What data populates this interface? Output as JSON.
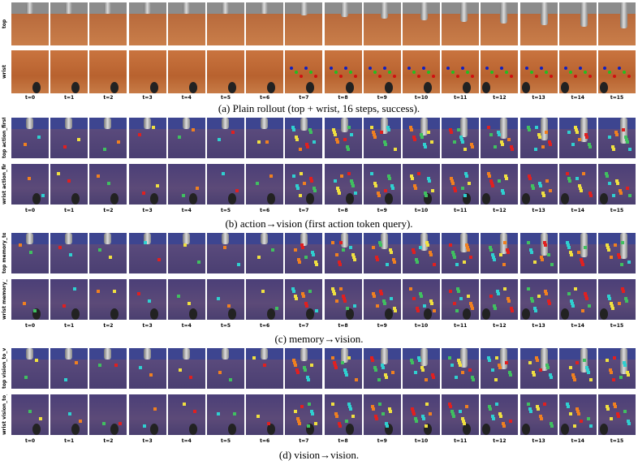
{
  "panels": [
    {
      "rows": [
        "top",
        "wrist"
      ],
      "time_labels": [
        "t=0",
        "t=1",
        "t=2",
        "t=3",
        "t=4",
        "t=5",
        "t=6",
        "t=7",
        "t=8",
        "t=9",
        "t=10",
        "t=11",
        "t=12",
        "t=13",
        "t=14",
        "t=15"
      ],
      "caption": "(a) Plain rollout (top + wrist, 16 steps, success)."
    },
    {
      "rows": [
        "top action_first_to_vision",
        "wrist action_first_to_vision"
      ],
      "time_labels": [
        "t=0",
        "t=1",
        "t=2",
        "t=3",
        "t=4",
        "t=5",
        "t=6",
        "t=7",
        "t=8",
        "t=9",
        "t=10",
        "t=11",
        "t=12",
        "t=13",
        "t=14",
        "t=15"
      ],
      "caption": "(b) action→vision (first action token query)."
    },
    {
      "rows": [
        "top memory_to_vision",
        "wrist memory_to_vision"
      ],
      "time_labels": [
        "t=0",
        "t=1",
        "t=2",
        "t=3",
        "t=4",
        "t=5",
        "t=6",
        "t=7",
        "t=8",
        "t=9",
        "t=10",
        "t=11",
        "t=12",
        "t=13",
        "t=14",
        "t=15"
      ],
      "caption": "(c) memory→vision."
    },
    {
      "rows": [
        "top vision_to_vision",
        "wrist vision_to_vision"
      ],
      "time_labels": [
        "t=0",
        "t=1",
        "t=2",
        "t=3",
        "t=4",
        "t=5",
        "t=6",
        "t=7",
        "t=8",
        "t=9",
        "t=10",
        "t=11",
        "t=12",
        "t=13",
        "t=14",
        "t=15"
      ],
      "caption": "(d) vision→vision."
    }
  ]
}
